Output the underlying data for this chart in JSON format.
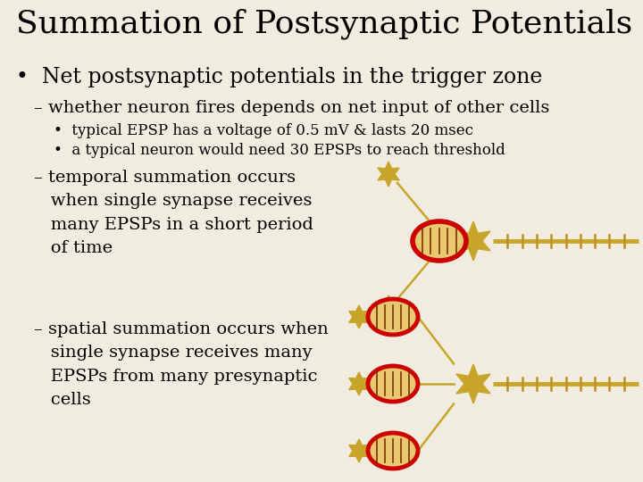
{
  "background_color": "#f0ede0",
  "title": "Summation of Postsynaptic Potentials",
  "title_fontsize": 26,
  "title_color": "#000000",
  "text_color": "#000000",
  "bullet1": "Net postsynaptic potentials in the trigger zone",
  "bullet1_fontsize": 17,
  "sub1": "– whether neuron fires depends on net input of other cells",
  "sub1_fontsize": 14,
  "sub1a": "typical EPSP has a voltage of 0.5 mV & lasts 20 msec",
  "sub1a_fontsize": 12,
  "sub1b": "a typical neuron would need 30 EPSPs to reach threshold",
  "sub1b_fontsize": 12,
  "sub2": "– temporal summation occurs\n   when single synapse receives\n   many EPSPs in a short period\n   of time",
  "sub2_fontsize": 14,
  "sub3": "– spatial summation occurs when\n   single synapse receives many\n   EPSPs from many presynaptic\n   cells",
  "sub3_fontsize": 14,
  "neuron_color": "#c8a428",
  "neuron_red": "#cc0000",
  "neuron_fill": "#d4a830",
  "synapse_fill": "#e8c870",
  "axon_color": "#c8a428",
  "myelin_color": "#b89020"
}
